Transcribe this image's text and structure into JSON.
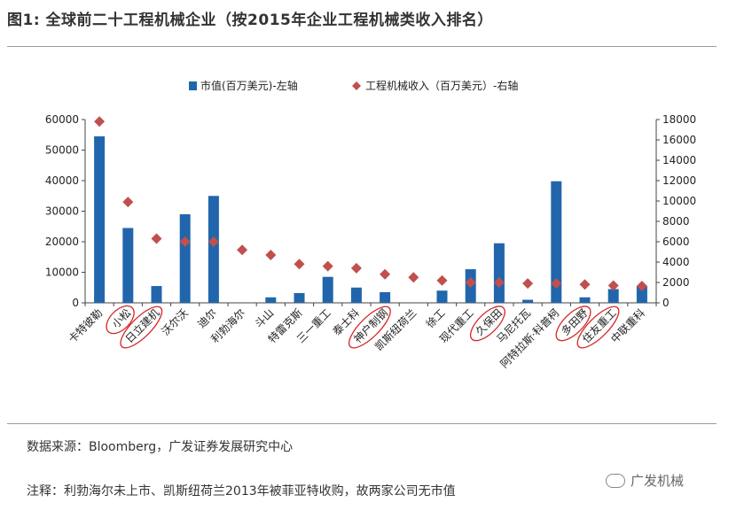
{
  "title": "图1:  全球前二十工程机械企业（按2015年企业工程机械类收入排名）",
  "source": "数据来源：Bloomberg，广发证券发展研究中心",
  "note": "注释：利勃海尔未上市、凯斯纽荷兰2013年被菲亚特收购，故两家公司无市值",
  "watermark": "广发机械",
  "colors": {
    "bar": "#2166ac",
    "marker": "#c0504d",
    "circle": "#d62728"
  },
  "chart_data": {
    "type": "bar",
    "categories": [
      "卡特彼勒",
      "小松",
      "日立建机",
      "沃尔沃",
      "迪尔",
      "利勃海尔",
      "斗山",
      "特雷克斯",
      "三一重工",
      "泰士科",
      "神户制钢",
      "凯斯纽荷兰",
      "徐工",
      "现代重工",
      "久保田",
      "马尼托瓦",
      "阿特拉斯·科普柯",
      "多田野",
      "住友重工",
      "中联重科"
    ],
    "series": [
      {
        "name": "市值(百万美元)-左轴",
        "type": "bar",
        "axis": "left",
        "values": [
          54500,
          24500,
          5500,
          29000,
          35000,
          null,
          1800,
          3200,
          8500,
          5000,
          3500,
          null,
          4000,
          11000,
          19500,
          1000,
          39800,
          1800,
          4500,
          5500
        ]
      },
      {
        "name": "工程机械收入（百万美元）-右轴",
        "type": "scatter",
        "marker": "diamond",
        "axis": "right",
        "values": [
          17800,
          9900,
          6300,
          6000,
          6000,
          5200,
          4700,
          3800,
          3600,
          3400,
          2800,
          2500,
          2200,
          2000,
          2000,
          1900,
          1900,
          1800,
          1700,
          1650
        ]
      }
    ],
    "y_left": {
      "min": 0,
      "max": 60000,
      "ticks": [
        0,
        10000,
        20000,
        30000,
        40000,
        50000,
        60000
      ]
    },
    "y_right": {
      "min": 0,
      "max": 18000,
      "ticks": [
        0,
        2000,
        4000,
        6000,
        8000,
        10000,
        12000,
        14000,
        16000,
        18000
      ]
    },
    "legend_position": "top",
    "circled_labels": [
      "小松",
      "日立建机",
      "神户制钢",
      "久保田",
      "多田野",
      "住友重工"
    ]
  }
}
